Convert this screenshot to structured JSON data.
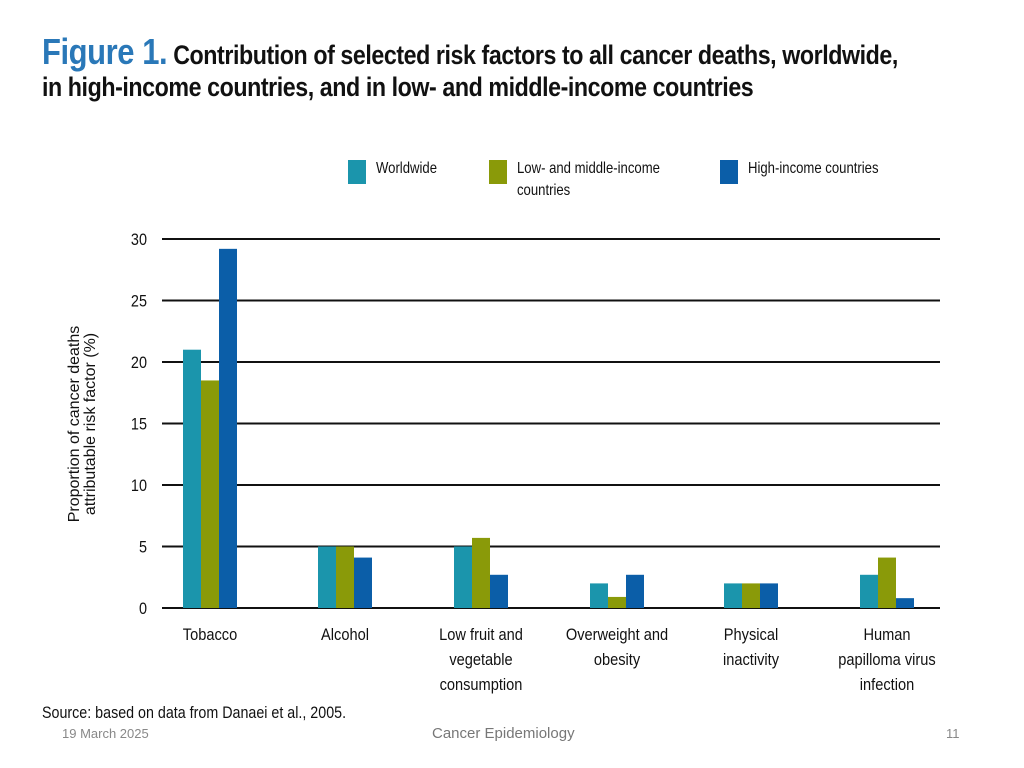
{
  "slide": {
    "figure_label": "Figure 1.",
    "title_line1": "Contribution of selected risk factors to all cancer deaths, worldwide,",
    "title_line2": "in high-income countries, and in low- and middle-income countries",
    "source": "Source: based on data from Danaei et al., 2005.",
    "footer_date": "19 March 2025",
    "footer_title": "Cancer Epidemiology",
    "page_number": "11"
  },
  "colors": {
    "worldwide": "#1b95ac",
    "low_middle": "#8a9a09",
    "high_income": "#0b5ea8",
    "grid": "#111111"
  },
  "chart_data": {
    "type": "bar",
    "title": "Contribution of selected risk factors to all cancer deaths, worldwide, in high-income countries, and in low- and middle-income countries",
    "xlabel": "",
    "ylabel": [
      "Proportion of cancer deaths",
      "attributable risk factor (%)"
    ],
    "ylim": [
      0,
      30
    ],
    "yticks": [
      "0",
      "5",
      "10",
      "15",
      "20",
      "25",
      "30"
    ],
    "grid": true,
    "legend_position": "top",
    "categories": [
      [
        "Tobacco"
      ],
      [
        "Alcohol"
      ],
      [
        "Low fruit and",
        "vegetable",
        "consumption"
      ],
      [
        "Overweight and",
        "obesity"
      ],
      [
        "Physical",
        "inactivity"
      ],
      [
        "Human",
        "papilloma virus",
        "infection"
      ]
    ],
    "series": [
      {
        "name": [
          "Worldwide"
        ],
        "color_key": "worldwide",
        "values": [
          21,
          5,
          5,
          2,
          2,
          2.7
        ]
      },
      {
        "name": [
          "Low- and middle-income",
          "countries"
        ],
        "color_key": "low_middle",
        "values": [
          18.5,
          5,
          5.7,
          0.9,
          2,
          4.1
        ]
      },
      {
        "name": [
          "High-income countries"
        ],
        "color_key": "high_income",
        "values": [
          29.2,
          4.1,
          2.7,
          2.7,
          2,
          0.8
        ]
      }
    ]
  }
}
